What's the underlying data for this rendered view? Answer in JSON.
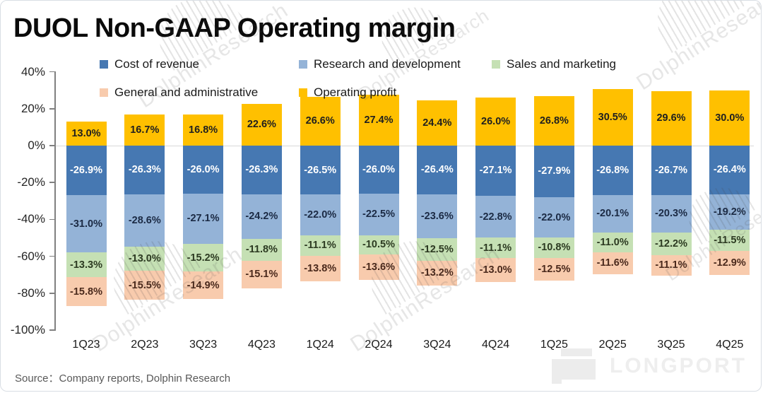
{
  "title": "DUOL Non-GAAP Operating margin",
  "source": "Source：Company reports, Dolphin Research",
  "watermark": {
    "brand_text": "DolphinResearch",
    "logo_text": "LONGPORT"
  },
  "legend": {
    "rows": [
      [
        "Cost of revenue",
        "Research and development",
        "Sales and marketing"
      ],
      [
        "General and administrative",
        "Operating profit"
      ]
    ]
  },
  "colors": {
    "axis": "#808080",
    "zero_line": "#d9d9d9",
    "tick_label": "#262626",
    "source_text": "#595959"
  },
  "chart_data": {
    "type": "bar",
    "subtype": "stacked",
    "title": "DUOL Non-GAAP Operating margin",
    "xlabel": "",
    "ylabel": "",
    "categories": [
      "1Q23",
      "2Q23",
      "3Q23",
      "4Q23",
      "1Q24",
      "2Q24",
      "3Q24",
      "4Q24",
      "1Q25",
      "2Q25",
      "3Q25",
      "4Q25"
    ],
    "series": [
      {
        "name": "Cost of revenue",
        "color": "#4678B2",
        "label_color": "#ffffff",
        "values": [
          -26.9,
          -26.3,
          -26.0,
          -26.3,
          -26.5,
          -26.0,
          -26.4,
          -27.1,
          -27.9,
          -26.8,
          -26.7,
          -26.4
        ]
      },
      {
        "name": "Research and development",
        "color": "#94B3D7",
        "label_color": "#1b2a44",
        "values": [
          -31.0,
          -28.6,
          -27.1,
          -24.2,
          -22.0,
          -22.5,
          -23.6,
          -22.8,
          -22.0,
          -20.1,
          -20.3,
          -19.2
        ]
      },
      {
        "name": "Sales and marketing",
        "color": "#C5E0B4",
        "label_color": "#2c3a21",
        "values": [
          -13.3,
          -13.0,
          -15.2,
          -11.8,
          -11.1,
          -10.5,
          -12.5,
          -11.1,
          -10.8,
          -11.0,
          -12.2,
          -11.5
        ]
      },
      {
        "name": "General and administrative",
        "color": "#F8CBAD",
        "label_color": "#4a291c",
        "values": [
          -15.8,
          -15.5,
          -14.9,
          -15.1,
          -13.8,
          -13.6,
          -13.2,
          -13.0,
          -12.5,
          -11.6,
          -11.1,
          -12.9
        ]
      },
      {
        "name": "Operating profit",
        "color": "#FFC000",
        "label_color": "#1f1f1f",
        "values": [
          13.0,
          16.7,
          16.8,
          22.6,
          26.6,
          27.4,
          24.4,
          26.0,
          26.8,
          30.5,
          29.6,
          30.0
        ]
      }
    ],
    "y_axis": {
      "tick_values": [
        40,
        20,
        0,
        -20,
        -40,
        -60,
        -80,
        -100
      ],
      "min": -100,
      "max": 40,
      "format": "percent",
      "grid": "zero-line-only"
    },
    "legend_position": "top",
    "value_label_format": "0.0%"
  }
}
